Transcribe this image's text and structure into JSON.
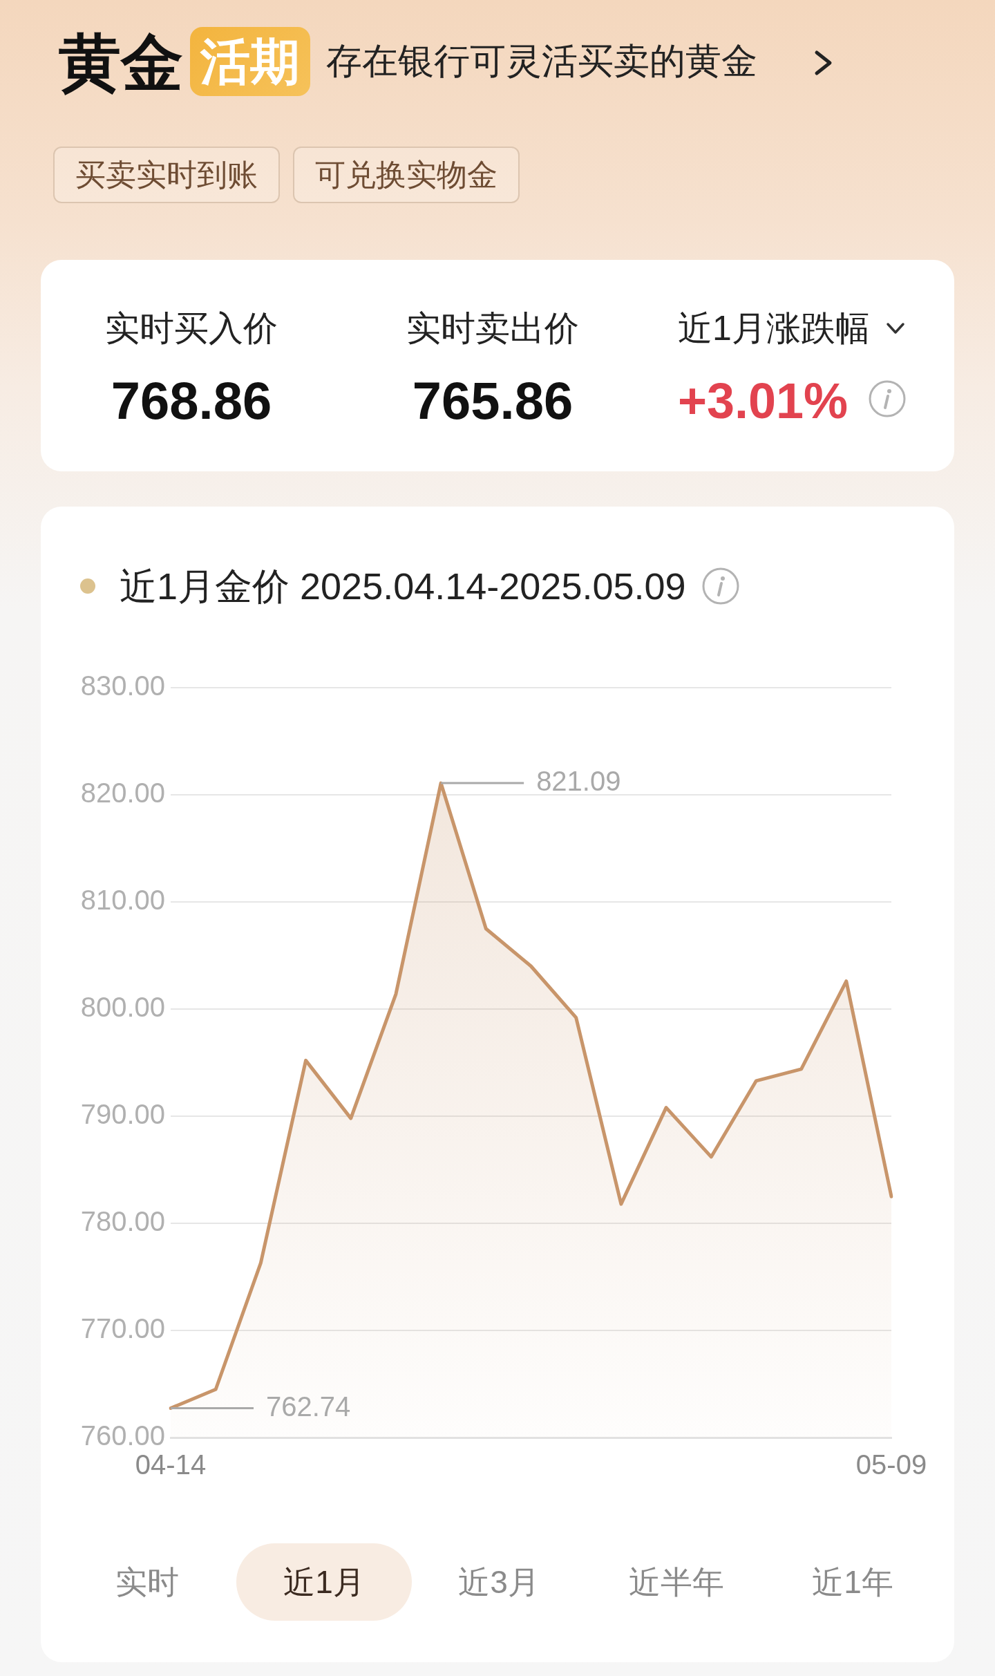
{
  "chart_data": [
    {
      "type": "other",
      "title": "黄金",
      "annotations": [
        "活期",
        "存在银行可灵活买卖的黄金",
        "买卖实时到账",
        "可兑换实物金",
        "实时买入价",
        "768.86",
        "实时卖出价",
        "765.86",
        "近1月涨跌幅",
        "+3.01%"
      ]
    },
    {
      "type": "area",
      "title": "近1月金价 2025.04.14-2025.05.09",
      "categories": [
        "04-14",
        null,
        null,
        null,
        null,
        null,
        null,
        null,
        null,
        null,
        null,
        null,
        null,
        null,
        null,
        null,
        "05-09"
      ],
      "series": [
        {
          "color": "#c8956a",
          "values": [
            762.74,
            764.5,
            776.3,
            795.2,
            789.8,
            801.4,
            821.09,
            807.5,
            804.0,
            799.2,
            781.8,
            790.8,
            786.2,
            793.3,
            794.4,
            802.6,
            782.5
          ],
          "value_labels": [
            "762.74",
            null,
            null,
            null,
            null,
            null,
            "821.09",
            null,
            null,
            null,
            null,
            null,
            null,
            null,
            null,
            null,
            null
          ]
        }
      ],
      "ylim": [
        760,
        830
      ],
      "yticks": [
        {
          "value": 760,
          "label": "760.00"
        },
        {
          "value": 770,
          "label": "770.00"
        },
        {
          "value": 780,
          "label": "780.00"
        },
        {
          "value": 790,
          "label": "790.00"
        },
        {
          "value": 800,
          "label": "800.00"
        },
        {
          "value": 810,
          "label": "810.00"
        },
        {
          "value": 820,
          "label": "820.00"
        },
        {
          "value": 830,
          "label": "830.00"
        }
      ],
      "grid": "y",
      "legend": false,
      "marker": "none",
      "annotations": [
        "实时",
        "近1月",
        "近3月",
        "近半年",
        "近1年"
      ]
    }
  ]
}
